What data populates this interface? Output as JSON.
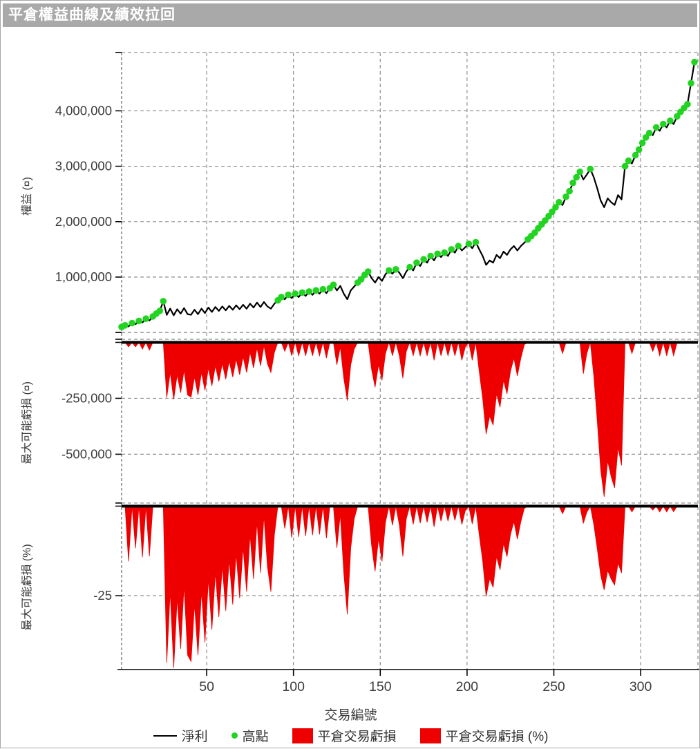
{
  "window": {
    "title": "平倉權益曲線及績效拉回"
  },
  "colors": {
    "titlebar_bg": "#a9a9a9",
    "title_text": "#ffffff",
    "equity_line": "#000000",
    "high_dot": "#22d422",
    "loss_fill": "#ee0000",
    "grid": "#8f8f8f",
    "axis": "#000000",
    "tick_text": "#3c3c3c"
  },
  "xaxis": {
    "label": "交易編號",
    "ticks": [
      50,
      100,
      150,
      200,
      250,
      300
    ],
    "range": [
      1,
      333
    ]
  },
  "chart_data": [
    {
      "type": "line",
      "name": "equity-curve",
      "ylabel": "權益 (¤)",
      "ylim": [
        -122000,
        5052000
      ],
      "yticks": [
        1000000,
        2000000,
        3000000,
        4000000
      ],
      "ytick_labels": [
        "1,000,000",
        "2,000,000",
        "3,000,000",
        "4,000,000"
      ],
      "grid": true,
      "x_start": 1,
      "x_step": 2,
      "series": [
        {
          "name": "淨利",
          "color": "#000000",
          "values": [
            100000,
            130000,
            110000,
            170000,
            150000,
            210000,
            180000,
            250000,
            215000,
            290000,
            340000,
            390000,
            565000,
            318000,
            430000,
            310000,
            420000,
            340000,
            440000,
            330000,
            320000,
            410000,
            330000,
            430000,
            350000,
            450000,
            370000,
            460000,
            390000,
            470000,
            400000,
            480000,
            410000,
            490000,
            420000,
            500000,
            430000,
            520000,
            450000,
            540000,
            460000,
            550000,
            470000,
            430000,
            520000,
            580000,
            640000,
            600000,
            680000,
            620000,
            700000,
            640000,
            720000,
            660000,
            740000,
            680000,
            760000,
            700000,
            780000,
            710000,
            800000,
            860000,
            760000,
            840000,
            700000,
            600000,
            760000,
            830000,
            900000,
            960000,
            1040000,
            1100000,
            980000,
            900000,
            1000000,
            930000,
            1050000,
            1120000,
            1060000,
            1140000,
            1080000,
            980000,
            1100000,
            1180000,
            1120000,
            1260000,
            1200000,
            1320000,
            1260000,
            1380000,
            1300000,
            1420000,
            1360000,
            1440000,
            1380000,
            1500000,
            1440000,
            1560000,
            1480000,
            1540000,
            1600000,
            1520000,
            1630000,
            1500000,
            1380000,
            1220000,
            1300000,
            1260000,
            1400000,
            1340000,
            1460000,
            1400000,
            1500000,
            1560000,
            1480000,
            1560000,
            1620000,
            1680000,
            1740000,
            1800000,
            1880000,
            1950000,
            2020000,
            2100000,
            2180000,
            2260000,
            2350000,
            2300000,
            2450000,
            2550000,
            2700000,
            2800000,
            2900000,
            2760000,
            2850000,
            2950000,
            2800000,
            2600000,
            2380000,
            2260000,
            2420000,
            2350000,
            2300000,
            2480000,
            2400000,
            3000000,
            3100000,
            3050000,
            3200000,
            3300000,
            3420000,
            3520000,
            3600000,
            3560000,
            3700000,
            3640000,
            3760000,
            3700000,
            3820000,
            3760000,
            3900000,
            3980000,
            4050000,
            4120000,
            4500000,
            4880000
          ]
        },
        {
          "name": "高點",
          "type": "scatter",
          "color": "#22d422",
          "derived": "points_where_equity_reaches_new_running_maximum"
        }
      ]
    },
    {
      "type": "area",
      "name": "drawdown-currency",
      "series_name": "平倉交易虧損",
      "ylabel": "最大可能虧損 (¤)",
      "ylim": [
        -718000,
        0
      ],
      "yticks": [
        -250000,
        -500000
      ],
      "ytick_labels": [
        "-250,000",
        "-500,000"
      ],
      "fill": "#ee0000",
      "derived": "equity_minus_running_maximum_of_equity"
    },
    {
      "type": "area",
      "name": "drawdown-percent",
      "series_name": "平倉交易虧損 (%)",
      "ylabel": "最大可能虧損 (%)",
      "ylim": [
        -45.6,
        0
      ],
      "yticks": [
        -25
      ],
      "ytick_labels": [
        "-25"
      ],
      "fill": "#ee0000",
      "derived": "percent_drawdown_from_running_maximum_of_equity"
    }
  ],
  "legend": [
    {
      "label": "淨利",
      "swatch": "line"
    },
    {
      "label": "高點",
      "swatch": "dot"
    },
    {
      "label": "平倉交易虧損",
      "swatch": "rect"
    },
    {
      "label": "平倉交易虧損 (%)",
      "swatch": "rect"
    }
  ]
}
